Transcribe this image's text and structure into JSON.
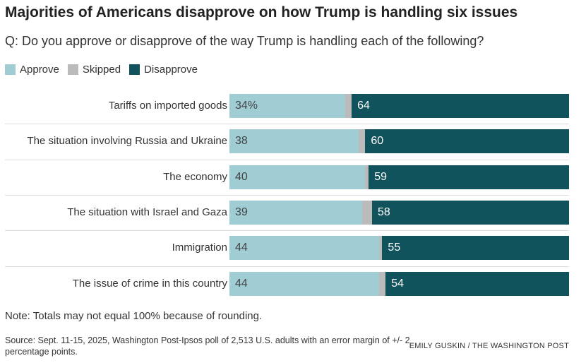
{
  "chart_data": {
    "type": "bar",
    "stacked": true,
    "orientation": "horizontal",
    "title": "Majorities of Americans disapprove on how Trump is handling six issues",
    "subtitle": "Q: Do you approve or disapprove of the way Trump is handling each of the following?",
    "categories": [
      "Tariffs on imported goods",
      "The situation involving Russia and Ukraine",
      "The economy",
      "The situation with Israel and Gaza",
      "Immigration",
      "The issue of crime in this country"
    ],
    "series": [
      {
        "name": "Approve",
        "color": "#a0ccd4",
        "values": [
          34,
          38,
          40,
          39,
          44,
          44
        ],
        "labels": [
          "34%",
          "38",
          "40",
          "39",
          "44",
          "44"
        ]
      },
      {
        "name": "Skipped",
        "color": "#bbbbbb",
        "values": [
          2,
          2,
          1,
          3,
          1,
          2
        ]
      },
      {
        "name": "Disapprove",
        "color": "#11535c",
        "values": [
          64,
          60,
          59,
          58,
          55,
          54
        ],
        "labels": [
          "64",
          "60",
          "59",
          "58",
          "55",
          "54"
        ]
      }
    ],
    "xlim": [
      0,
      100
    ],
    "legend": "top-left"
  },
  "note": "Note: Totals may not equal 100% because of rounding.",
  "source": "Source: Sept. 11-15, 2025, Washington Post-Ipsos poll of 2,513 U.S. adults with an error margin of +/- 2 percentage points.",
  "credit": "EMILY GUSKIN / THE WASHINGTON POST"
}
